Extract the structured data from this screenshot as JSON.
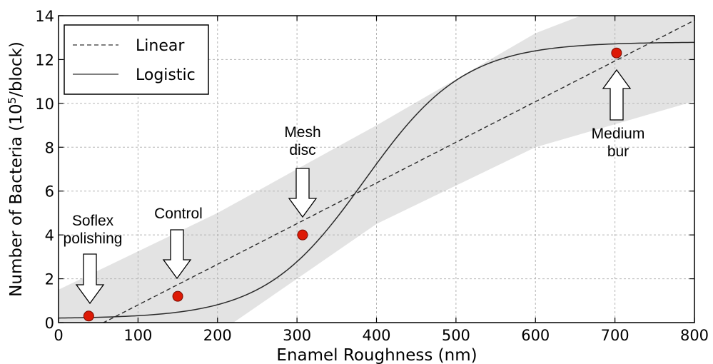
{
  "chart_data": {
    "type": "scatter",
    "xlabel": "Enamel Roughness (nm)",
    "ylabel": {
      "prefix": "Number of Bacteria (10",
      "superscript": "5",
      "suffix": "/block)"
    },
    "xlim": [
      0,
      800
    ],
    "ylim": [
      0,
      14
    ],
    "xticks": [
      0,
      100,
      200,
      300,
      400,
      500,
      600,
      700,
      800
    ],
    "yticks": [
      0,
      2,
      4,
      6,
      8,
      10,
      12,
      14
    ],
    "grid": true,
    "legend": {
      "placement": "top-left",
      "entries": [
        {
          "label": "Linear",
          "style": "dashed"
        },
        {
          "label": "Logistic",
          "style": "solid"
        }
      ]
    },
    "points": [
      {
        "x": 38,
        "y": 0.3,
        "label": "Soflex\npolishing"
      },
      {
        "x": 150,
        "y": 1.2,
        "label": "Control"
      },
      {
        "x": 307,
        "y": 4.0,
        "label": "Mesh\ndisc"
      },
      {
        "x": 702,
        "y": 12.3,
        "label": "Medium\nbur"
      }
    ],
    "linear_fit": {
      "slope": 0.01855,
      "intercept": -1.05
    },
    "logistic_fit": {
      "lower": 0.18,
      "upper": 12.8,
      "midpoint": 385,
      "scale": 63
    },
    "confidence_band": {
      "x": [
        0,
        200,
        400,
        600,
        800
      ],
      "lower": [
        -2.5,
        -0.5,
        4.5,
        8.0,
        10.1
      ],
      "upper": [
        1.5,
        5.0,
        9.0,
        13.2,
        16.0
      ]
    },
    "colors": {
      "points": "#dd1a06",
      "point_edge": "#7a0c00",
      "band": "#e3e3e3",
      "lines": "#2a2a2a",
      "grid": "#b5b5b5"
    }
  }
}
